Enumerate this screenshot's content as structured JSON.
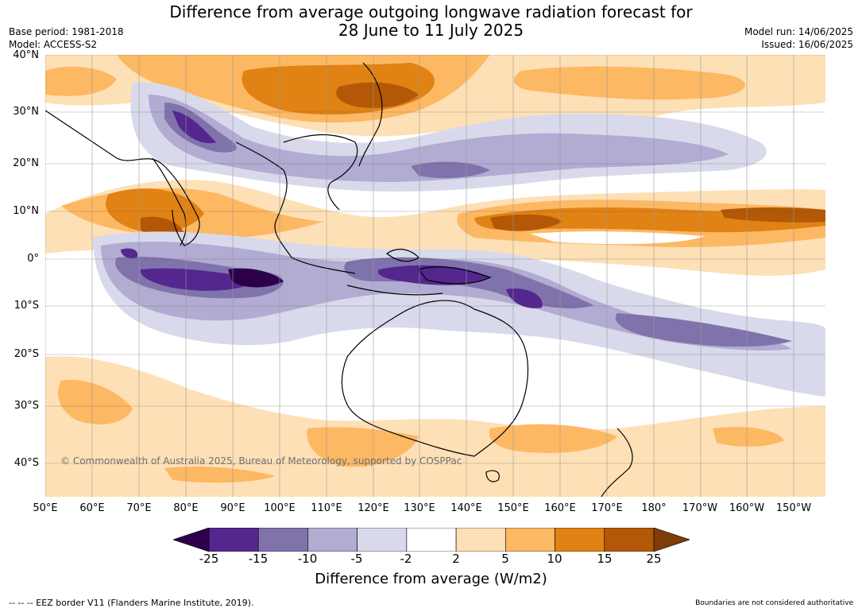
{
  "title_line1": "Difference from average outgoing longwave radiation forecast for",
  "title_line2": "28 June to 11 July 2025",
  "meta_left": {
    "base_period": "Base period: 1981-2018",
    "model": "Model: ACCESS-S2"
  },
  "meta_right": {
    "model_run": "Model run: 14/06/2025",
    "issued": "Issued: 16/06/2025"
  },
  "lat_labels": [
    "40°N",
    "30°N",
    "20°N",
    "10°N",
    "0°",
    "10°S",
    "20°S",
    "30°S",
    "40°S"
  ],
  "lon_labels": [
    "50°E",
    "60°E",
    "70°E",
    "80°E",
    "90°E",
    "100°E",
    "110°E",
    "120°E",
    "130°E",
    "140°E",
    "150°E",
    "160°E",
    "170°E",
    "180°",
    "170°W",
    "160°W",
    "150°W"
  ],
  "colorbar": {
    "ticks": [
      "-25",
      "-15",
      "-10",
      "-5",
      "-2",
      "2",
      "5",
      "10",
      "15",
      "25"
    ],
    "colors": [
      "#2d004b",
      "#54278f",
      "#8073ac",
      "#b2abd2",
      "#d8daeb",
      "#ffffff",
      "#fee0b6",
      "#fdb863",
      "#e08214",
      "#b35806",
      "#7f3b08"
    ],
    "title": "Difference from average (W/m2)"
  },
  "copyright": "© Commonwealth of Australia 2025, Bureau of Meteorology, supported by COSPPac",
  "eez_legend": "--  --  -- EEZ border V11 (Flanders Marine Institute, 2019).",
  "disclaimer": "Boundaries are not considered authoritative"
}
